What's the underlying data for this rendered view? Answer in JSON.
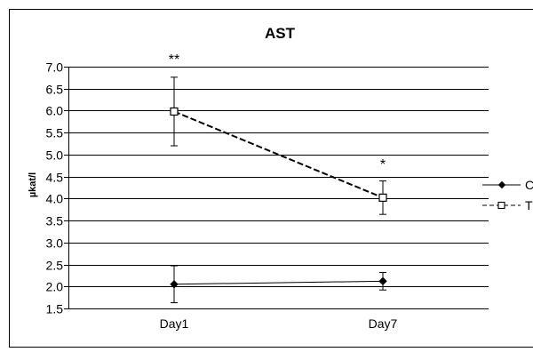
{
  "chart_data": {
    "type": "line",
    "title": "AST",
    "xlabel": "",
    "ylabel": "µkat/l",
    "categories": [
      "Day1",
      "Day7"
    ],
    "ylim": [
      1.5,
      7.0
    ],
    "yticks": [
      "7.0",
      "6.5",
      "6.0",
      "5.5",
      "5.0",
      "4.5",
      "4.0",
      "3.5",
      "3.0",
      "2.5",
      "2.0",
      "1.5"
    ],
    "grid": true,
    "legend_position": "right",
    "series": [
      {
        "name": "C",
        "values": [
          2.05,
          2.12
        ],
        "error": [
          0.42,
          0.2
        ],
        "marker": "filled-diamond",
        "line_style": "solid"
      },
      {
        "name": "T",
        "values": [
          5.98,
          4.02
        ],
        "error": [
          0.78,
          0.38
        ],
        "marker": "open-square",
        "line_style": "dashed"
      }
    ],
    "annotations": [
      {
        "category": "Day1",
        "text": "**"
      },
      {
        "category": "Day7",
        "text": "*"
      }
    ]
  }
}
